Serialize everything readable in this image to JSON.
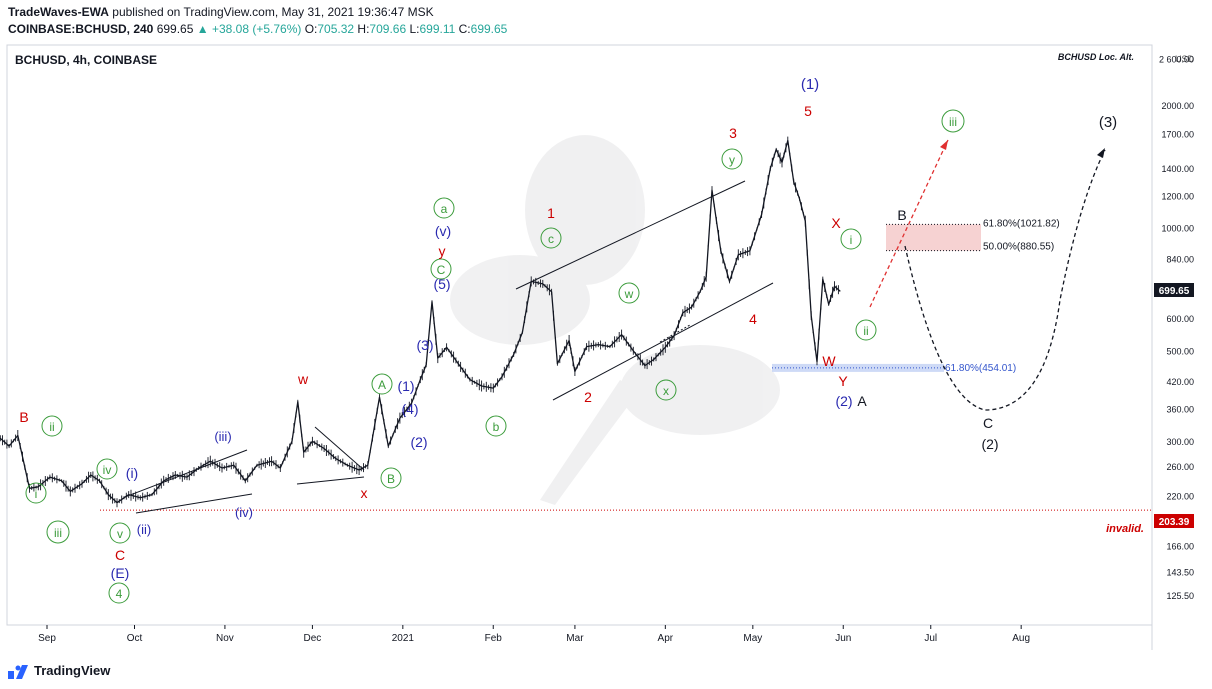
{
  "header": {
    "publisher": "TradeWaves-EWA",
    "published_text": "published on TradingView.com, May 31, 2021 19:36:47 MSK",
    "symbol_line": "COINBASE:BCHUSD, 240",
    "last": "699.65",
    "change": "▲ +38.08 (+5.76%)",
    "o_label": "O:",
    "o": "705.32",
    "h_label": "H:",
    "h": "709.66",
    "l_label": "L:",
    "l": "699.11",
    "c_label": "C:",
    "c": "699.65"
  },
  "chart_data": {
    "type": "candlestick",
    "title": "BCHUSD, 4h, COINBASE",
    "watermark_note": "BCHUSD Loc. Alt.",
    "currency": "USD",
    "y_scale": "log",
    "ylim": [
      115,
      2600
    ],
    "y_ticks": [
      "2 600.00",
      "2000.00",
      "1700.00",
      "1400.00",
      "1200.00",
      "1000.00",
      "840.00",
      "700.00",
      "600.00",
      "500.00",
      "420.00",
      "360.00",
      "300.00",
      "260.00",
      "220.00",
      "190.00",
      "166.00",
      "143.50",
      "125.50"
    ],
    "x_ticks": [
      "Sep",
      "Oct",
      "Nov",
      "Dec",
      "2021",
      "Feb",
      "Mar",
      "Apr",
      "May",
      "Jun",
      "Jul",
      "Aug"
    ],
    "price_labels": {
      "last": "699.65",
      "invalid": "203.39"
    },
    "invalid_label": "invalid.",
    "fib_levels": [
      {
        "label": "61.80%(1021.82)",
        "value": 1021.82
      },
      {
        "label": "50.00%(880.55)",
        "value": 880.55
      },
      {
        "label": "61.80%(454.01)",
        "value": 454.01
      }
    ],
    "path": [
      [
        "2020-08-01",
        340
      ],
      [
        "2020-08-07",
        300
      ],
      [
        "2020-08-12",
        290
      ],
      [
        "2020-08-16",
        305
      ],
      [
        "2020-08-19",
        292
      ],
      [
        "2020-08-22",
        310
      ],
      [
        "2020-08-26",
        230
      ],
      [
        "2020-08-29",
        232
      ],
      [
        "2020-09-02",
        245
      ],
      [
        "2020-09-06",
        240
      ],
      [
        "2020-09-09",
        226
      ],
      [
        "2020-09-13",
        236
      ],
      [
        "2020-09-16",
        248
      ],
      [
        "2020-09-19",
        240
      ],
      [
        "2020-09-22",
        222
      ],
      [
        "2020-09-25",
        212
      ],
      [
        "2020-09-29",
        222
      ],
      [
        "2020-10-03",
        218
      ],
      [
        "2020-10-07",
        222
      ],
      [
        "2020-10-11",
        240
      ],
      [
        "2020-10-15",
        248
      ],
      [
        "2020-10-19",
        245
      ],
      [
        "2020-10-23",
        258
      ],
      [
        "2020-10-27",
        268
      ],
      [
        "2020-10-31",
        258
      ],
      [
        "2020-11-04",
        262
      ],
      [
        "2020-11-08",
        240
      ],
      [
        "2020-11-12",
        262
      ],
      [
        "2020-11-17",
        268
      ],
      [
        "2020-11-20",
        258
      ],
      [
        "2020-11-24",
        300
      ],
      [
        "2020-11-26",
        375
      ],
      [
        "2020-11-28",
        282
      ],
      [
        "2020-12-01",
        300
      ],
      [
        "2020-12-05",
        288
      ],
      [
        "2020-12-09",
        272
      ],
      [
        "2020-12-13",
        262
      ],
      [
        "2020-12-17",
        255
      ],
      [
        "2020-12-20",
        262
      ],
      [
        "2020-12-24",
        385
      ],
      [
        "2020-12-27",
        292
      ],
      [
        "2020-12-31",
        342
      ],
      [
        "2021-01-04",
        372
      ],
      [
        "2021-01-07",
        425
      ],
      [
        "2021-01-09",
        462
      ],
      [
        "2021-01-11",
        660
      ],
      [
        "2021-01-13",
        480
      ],
      [
        "2021-01-16",
        510
      ],
      [
        "2021-01-20",
        465
      ],
      [
        "2021-01-24",
        425
      ],
      [
        "2021-01-28",
        410
      ],
      [
        "2021-02-01",
        405
      ],
      [
        "2021-02-04",
        432
      ],
      [
        "2021-02-08",
        490
      ],
      [
        "2021-02-11",
        555
      ],
      [
        "2021-02-14",
        740
      ],
      [
        "2021-02-18",
        730
      ],
      [
        "2021-02-21",
        698
      ],
      [
        "2021-02-23",
        465
      ],
      [
        "2021-02-27",
        530
      ],
      [
        "2021-03-01",
        445
      ],
      [
        "2021-03-05",
        512
      ],
      [
        "2021-03-09",
        518
      ],
      [
        "2021-03-13",
        512
      ],
      [
        "2021-03-17",
        548
      ],
      [
        "2021-03-21",
        500
      ],
      [
        "2021-03-25",
        460
      ],
      [
        "2021-03-28",
        476
      ],
      [
        "2021-04-01",
        510
      ],
      [
        "2021-04-04",
        545
      ],
      [
        "2021-04-07",
        620
      ],
      [
        "2021-04-10",
        640
      ],
      [
        "2021-04-13",
        700
      ],
      [
        "2021-04-15",
        760
      ],
      [
        "2021-04-17",
        1240
      ],
      [
        "2021-04-20",
        880
      ],
      [
        "2021-04-23",
        740
      ],
      [
        "2021-04-26",
        860
      ],
      [
        "2021-04-30",
        880
      ],
      [
        "2021-05-04",
        1080
      ],
      [
        "2021-05-07",
        1400
      ],
      [
        "2021-05-09",
        1560
      ],
      [
        "2021-05-11",
        1450
      ],
      [
        "2021-05-13",
        1640
      ],
      [
        "2021-05-15",
        1300
      ],
      [
        "2021-05-17",
        1180
      ],
      [
        "2021-05-19",
        1040
      ],
      [
        "2021-05-21",
        610
      ],
      [
        "2021-05-23",
        470
      ],
      [
        "2021-05-25",
        750
      ],
      [
        "2021-05-27",
        650
      ],
      [
        "2021-05-29",
        720
      ],
      [
        "2021-05-31",
        699.65
      ]
    ]
  },
  "wave_labels": [
    {
      "t": "B",
      "color": "#cc0000"
    },
    {
      "t": "ii",
      "color": "#3c9c3c"
    },
    {
      "t": "i",
      "color": "#3c9c3c"
    },
    {
      "t": "iii",
      "color": "#3c9c3c"
    },
    {
      "t": "iv",
      "color": "#3c9c3c"
    },
    {
      "t": "v",
      "color": "#3c9c3c"
    },
    {
      "t": "C",
      "color": "#cc0000"
    },
    {
      "t": "(E)",
      "color": "#2a2ab0"
    },
    {
      "t": "4",
      "color": "#3c9c3c"
    },
    {
      "t": "(i)",
      "color": "#2a2ab0"
    },
    {
      "t": "(ii)",
      "color": "#2a2ab0"
    },
    {
      "t": "(iii)",
      "color": "#2a2ab0"
    },
    {
      "t": "(iv)",
      "color": "#2a2ab0"
    },
    {
      "t": "w",
      "color": "#cc0000"
    },
    {
      "t": "x",
      "color": "#cc0000"
    },
    {
      "t": "A",
      "color": "#3c9c3c"
    },
    {
      "t": "B",
      "color": "#3c9c3c"
    },
    {
      "t": "(1)",
      "color": "#2a2ab0"
    },
    {
      "t": "(2)",
      "color": "#2a2ab0"
    },
    {
      "t": "(3)",
      "color": "#2a2ab0"
    },
    {
      "t": "(4)",
      "color": "#2a2ab0"
    },
    {
      "t": "(5)",
      "color": "#2a2ab0"
    },
    {
      "t": "C",
      "color": "#3c9c3c"
    },
    {
      "t": "y",
      "color": "#cc0000"
    },
    {
      "t": "(v)",
      "color": "#2a2ab0"
    },
    {
      "t": "a",
      "color": "#3c9c3c"
    },
    {
      "t": "b",
      "color": "#3c9c3c"
    },
    {
      "t": "c",
      "color": "#3c9c3c"
    },
    {
      "t": "1",
      "color": "#cc0000"
    },
    {
      "t": "2",
      "color": "#cc0000"
    },
    {
      "t": "w",
      "color": "#3c9c3c"
    },
    {
      "t": "x",
      "color": "#3c9c3c"
    },
    {
      "t": "y",
      "color": "#3c9c3c"
    },
    {
      "t": "3",
      "color": "#cc0000"
    },
    {
      "t": "4",
      "color": "#cc0000"
    },
    {
      "t": "5",
      "color": "#cc0000"
    },
    {
      "t": "(1)",
      "color": "#2a2ab0"
    },
    {
      "t": "X",
      "color": "#cc0000"
    },
    {
      "t": "W",
      "color": "#cc0000"
    },
    {
      "t": "Y",
      "color": "#cc0000"
    },
    {
      "t": "(2)",
      "color": "#2a2ab0"
    },
    {
      "t": "A",
      "color": "#131722"
    },
    {
      "t": "i",
      "color": "#3c9c3c"
    },
    {
      "t": "ii",
      "color": "#3c9c3c"
    },
    {
      "t": "iii",
      "color": "#3c9c3c"
    },
    {
      "t": "B",
      "color": "#131722"
    },
    {
      "t": "C",
      "color": "#131722"
    },
    {
      "t": "(2)",
      "color": "#131722"
    },
    {
      "t": "(3)",
      "color": "#131722"
    }
  ],
  "footer": {
    "brand": "TradingView"
  },
  "colors": {
    "up": "#131722",
    "accent_green": "#26a69a",
    "fib_zone": "#f4c7c7",
    "support_zone": "#c9d6f5",
    "invalid": "#cc0000",
    "last_bg": "#131722"
  }
}
